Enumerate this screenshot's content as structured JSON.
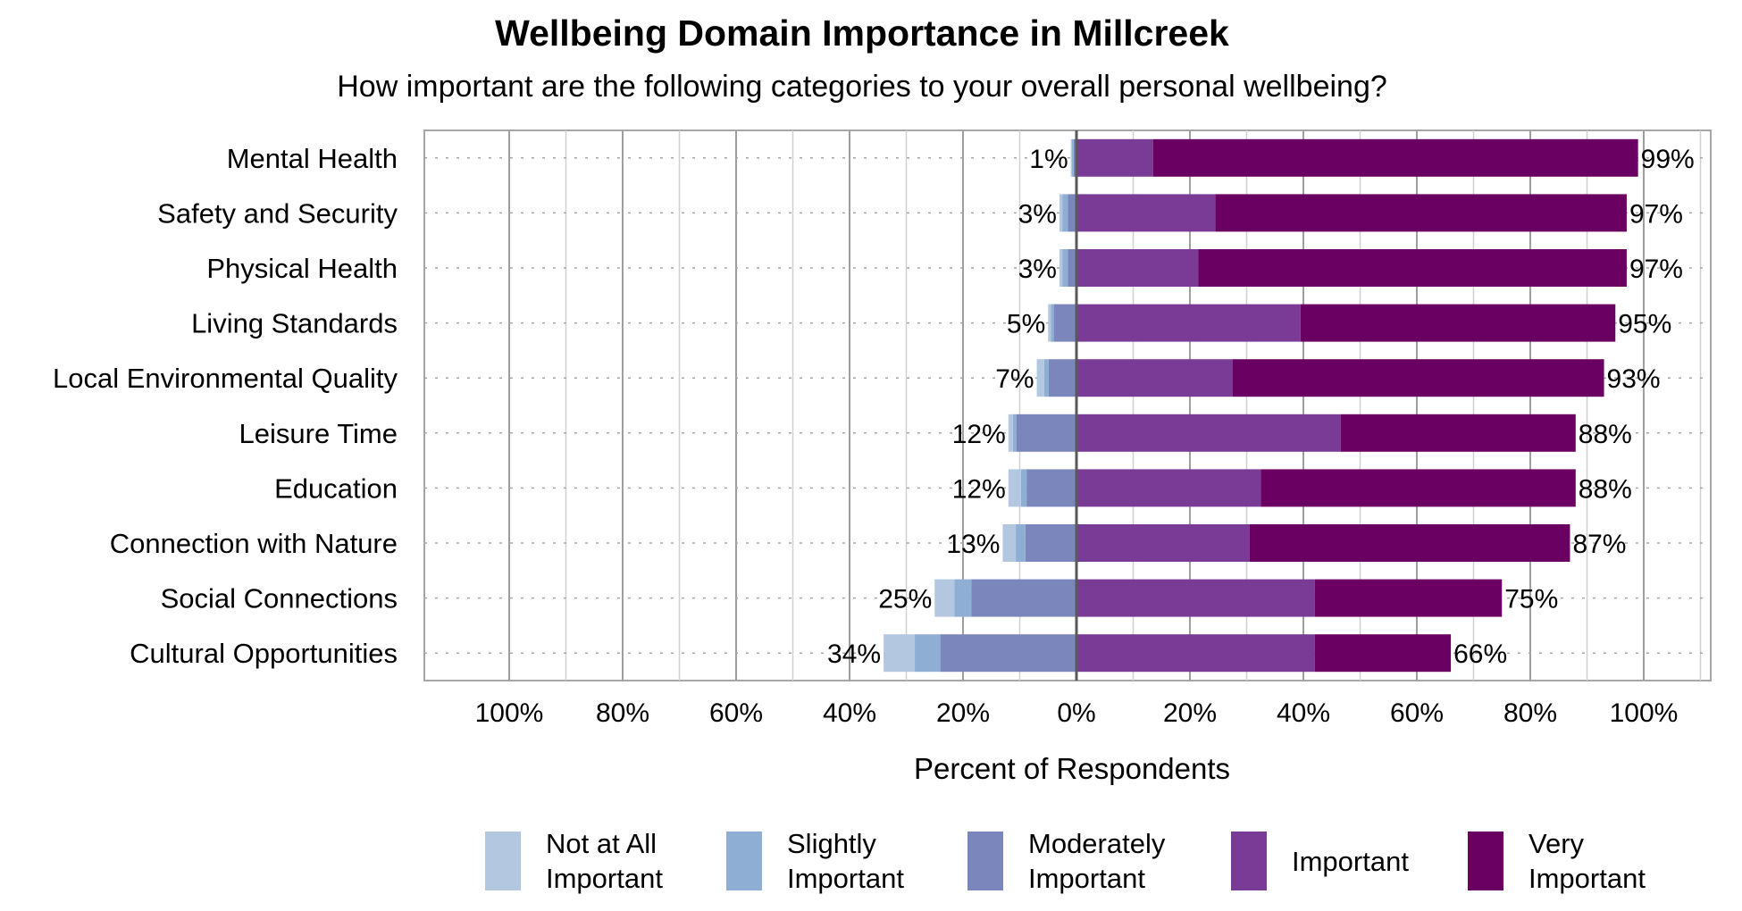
{
  "chart_data": {
    "type": "bar",
    "orientation": "horizontal-diverging",
    "title": "Wellbeing Domain Importance in Millcreek",
    "subtitle": "How important are the following categories to your overall personal wellbeing?",
    "xlabel": "Percent of Respondents",
    "xlim": [
      -100,
      100
    ],
    "x_ticks": [
      "100%",
      "80%",
      "60%",
      "40%",
      "20%",
      "0%",
      "20%",
      "40%",
      "60%",
      "80%",
      "100%"
    ],
    "categories": [
      "Mental Health",
      "Safety and Security",
      "Physical Health",
      "Living Standards",
      "Local Environmental Quality",
      "Leisure Time",
      "Education",
      "Connection with Nature",
      "Social Connections",
      "Cultural Opportunities"
    ],
    "series": [
      {
        "name": "Not at All Important",
        "side": "negative",
        "color": "#b4c7e1",
        "values": [
          0.2,
          0.5,
          0.5,
          0.5,
          1.3,
          0.8,
          2.2,
          2.3,
          3.5,
          5.5
        ]
      },
      {
        "name": "Slightly Important",
        "side": "negative",
        "color": "#8eaed4",
        "values": [
          0.3,
          1.0,
          1.0,
          0.5,
          0.8,
          0.6,
          1.0,
          1.7,
          3.0,
          4.5
        ]
      },
      {
        "name": "Moderately Important",
        "side": "negative",
        "color": "#7b87bc",
        "values": [
          0.5,
          1.5,
          1.5,
          4.0,
          4.9,
          10.6,
          8.8,
          9.0,
          18.5,
          24.0
        ]
      },
      {
        "name": "Important",
        "side": "positive",
        "color": "#7a3b96",
        "values": [
          13.5,
          24.5,
          21.5,
          39.5,
          27.5,
          46.6,
          32.5,
          30.5,
          42.0,
          42.0
        ]
      },
      {
        "name": "Very Important",
        "side": "positive",
        "color": "#6b0063",
        "values": [
          85.5,
          72.5,
          75.5,
          55.5,
          65.5,
          41.4,
          55.5,
          56.5,
          33.0,
          24.0
        ]
      }
    ],
    "neg_labels": [
      "1%",
      "3%",
      "3%",
      "5%",
      "7%",
      "12%",
      "12%",
      "13%",
      "25%",
      "34%"
    ],
    "pos_labels": [
      "99%",
      "97%",
      "97%",
      "95%",
      "93%",
      "88%",
      "88%",
      "87%",
      "75%",
      "66%"
    ],
    "legend_position": "bottom",
    "grid": true
  }
}
